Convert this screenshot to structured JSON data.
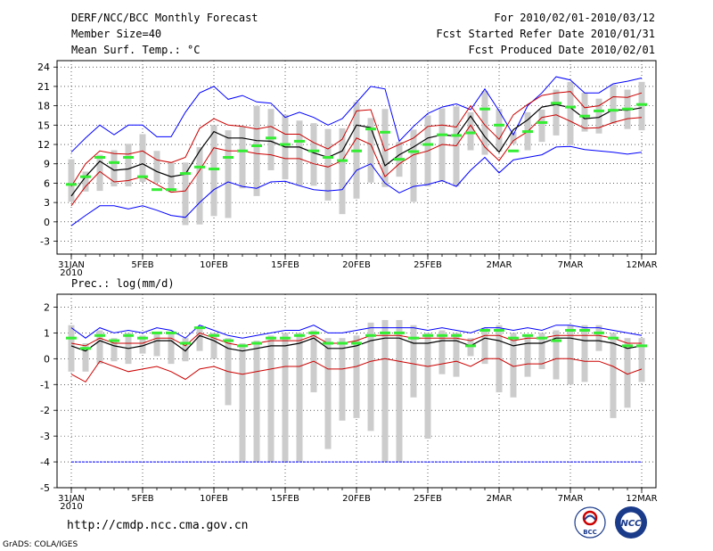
{
  "header": {
    "title": "DERF/NCC/BCC Monthly Forecast",
    "member_size": "Member Size=40",
    "variable": "Mean Surf. Temp.: °C",
    "period": "For 2010/02/01-2010/03/12",
    "start_date": "Fcst Started Refer Date 2010/01/31",
    "produced_date": "Fcst Produced Date 2010/02/01"
  },
  "footer": {
    "url": "http://cmdp.ncc.cma.gov.cn",
    "grads": "GrADS: COLA/IGES",
    "logo_bcc": "BCC",
    "logo_ncc": "NCC"
  },
  "colors": {
    "max_min": "#0000ff",
    "std": "#cc0000",
    "mean": "#000000",
    "median": "#33ee33",
    "box": "#cccccc"
  },
  "chart_data": [
    {
      "type": "line",
      "title": "Mean Surf. Temp.: °C",
      "ylim": [
        -5,
        25
      ],
      "yticks": [
        -3,
        0,
        3,
        6,
        9,
        12,
        15,
        18,
        21,
        24
      ],
      "x_days": [
        0,
        1,
        2,
        3,
        4,
        5,
        6,
        7,
        8,
        9,
        10,
        11,
        12,
        13,
        14,
        15,
        16,
        17,
        18,
        19,
        20,
        21,
        22,
        23,
        24,
        25,
        26,
        27,
        28,
        29,
        30,
        31,
        32,
        33,
        34,
        35,
        36,
        37,
        38,
        39,
        40
      ],
      "xticks": [
        {
          "day": 0,
          "label": "31JAN"
        },
        {
          "day": 5,
          "label": "5FEB"
        },
        {
          "day": 10,
          "label": "10FEB"
        },
        {
          "day": 15,
          "label": "15FEB"
        },
        {
          "day": 20,
          "label": "20FEB"
        },
        {
          "day": 25,
          "label": "25FEB"
        },
        {
          "day": 30,
          "label": "2MAR"
        },
        {
          "day": 35,
          "label": "7MAR"
        },
        {
          "day": 40,
          "label": "12MAR"
        }
      ],
      "xlabel_year": "2010",
      "series": [
        {
          "name": "max",
          "values": [
            10.8,
            13,
            15,
            13.5,
            15,
            15,
            13.2,
            13.2,
            17,
            20,
            21,
            19,
            19.6,
            18.6,
            18.4,
            16.2,
            17,
            16.2,
            15,
            16,
            18.5,
            21,
            20.6,
            12.5,
            14.8,
            16.8,
            17.8,
            18.3,
            17.4,
            20.6,
            17.2,
            13.5,
            18,
            20,
            22.5,
            22,
            20,
            20,
            21.4,
            21.8,
            22.3
          ]
        },
        {
          "name": "upper",
          "values": [
            5.5,
            9,
            11,
            10.6,
            10.5,
            11,
            9.6,
            9.2,
            10,
            14.5,
            16,
            15,
            14.8,
            14.4,
            14.8,
            13.6,
            13.6,
            12.3,
            11.3,
            12.8,
            17.2,
            17.4,
            11,
            12,
            13,
            14.8,
            15,
            14.7,
            18,
            15,
            12.8,
            16.6,
            18.2,
            19.6,
            20,
            20.2,
            17.7,
            18,
            19.4,
            19.3,
            20
          ]
        },
        {
          "name": "mean",
          "values": [
            4,
            7,
            9.4,
            8,
            8.2,
            9,
            7.8,
            7,
            7.4,
            11,
            14,
            13,
            13,
            12.6,
            12.5,
            11.6,
            11.6,
            10.7,
            10,
            11,
            15,
            14.6,
            8.7,
            10.4,
            11.6,
            13,
            13.5,
            13.3,
            16.4,
            13.2,
            10.8,
            14.3,
            15.8,
            17.8,
            18.2,
            17.7,
            16,
            16.2,
            17.4,
            17.3,
            17.7
          ]
        },
        {
          "name": "lower",
          "values": [
            2.5,
            5.5,
            7.8,
            6.2,
            6.4,
            7,
            5.8,
            4.6,
            4.8,
            8,
            11.5,
            11,
            11,
            10.6,
            10.4,
            9.8,
            9.8,
            9,
            8.5,
            9.5,
            13,
            12,
            7,
            9,
            10.4,
            11,
            12,
            11.8,
            15,
            11.6,
            9.5,
            12.6,
            14,
            16.2,
            16.6,
            15.6,
            14.5,
            14.6,
            15.4,
            16,
            16.2
          ]
        },
        {
          "name": "min",
          "values": [
            -0.6,
            1,
            2.5,
            2.5,
            2,
            2.5,
            1.8,
            1,
            0.7,
            3,
            5,
            6.2,
            5.5,
            5.2,
            6.2,
            6.3,
            5.6,
            5,
            4.8,
            5,
            8,
            9,
            6,
            4.5,
            5.5,
            5.8,
            6.4,
            5.5,
            8,
            10,
            7.6,
            9.6,
            10,
            10.4,
            11.6,
            11.7,
            11.2,
            11,
            10.8,
            10.5,
            10.8
          ]
        },
        {
          "name": "median",
          "values": [
            5.8,
            7,
            10,
            9.2,
            10,
            7,
            5,
            5,
            7.5,
            8.5,
            8.2,
            10,
            11,
            11.8,
            13,
            12,
            12.5,
            11,
            10,
            9.5,
            11,
            14.4,
            13.9,
            9.7,
            10.9,
            12,
            13.5,
            13.4,
            13.8,
            17.5,
            15,
            11,
            14,
            15.4,
            18.4,
            17.8,
            16.4,
            17.2,
            17.3,
            17.5,
            18.2
          ]
        },
        {
          "name": "box_top",
          "values": [
            9.7,
            7.8,
            10.4,
            11.1,
            12.1,
            13.6,
            11,
            9.2,
            9.2,
            11.6,
            15,
            14.2,
            14.8,
            18,
            17.5,
            16.6,
            15.7,
            15.3,
            14.4,
            14.5,
            18.6,
            16.1,
            17.5,
            12.4,
            14.3,
            16.5,
            17.6,
            17.9,
            17,
            20.3,
            17.5,
            13.9,
            17,
            17.4,
            20.5,
            21.7,
            20,
            19.1,
            21.3,
            20.5,
            21.7
          ]
        },
        {
          "name": "box_bottom",
          "values": [
            3.1,
            4.7,
            4.8,
            5.5,
            5.5,
            6.2,
            6.1,
            4.6,
            -0.5,
            -0.4,
            0.9,
            0.6,
            5.2,
            4,
            8,
            6.6,
            5.6,
            5.6,
            3.3,
            1.2,
            3.6,
            6.1,
            5.4,
            7,
            3.1,
            5.5,
            6.2,
            5.5,
            11.1,
            10.4,
            10.9,
            12.1,
            11.1,
            12.4,
            13.4,
            11.9,
            14,
            13.7,
            15.2,
            14.4,
            14.2
          ]
        }
      ]
    },
    {
      "type": "line",
      "title": "Prec.: log(mm/d)",
      "ylim": [
        -5,
        2.5
      ],
      "yticks": [
        -5,
        -4,
        -3,
        -2,
        -1,
        0,
        1,
        2
      ],
      "x_days": [
        0,
        1,
        2,
        3,
        4,
        5,
        6,
        7,
        8,
        9,
        10,
        11,
        12,
        13,
        14,
        15,
        16,
        17,
        18,
        19,
        20,
        21,
        22,
        23,
        24,
        25,
        26,
        27,
        28,
        29,
        30,
        31,
        32,
        33,
        34,
        35,
        36,
        37,
        38,
        39,
        40
      ],
      "xticks": [
        {
          "day": 0,
          "label": "31JAN"
        },
        {
          "day": 5,
          "label": "5FEB"
        },
        {
          "day": 10,
          "label": "10FEB"
        },
        {
          "day": 15,
          "label": "15FEB"
        },
        {
          "day": 20,
          "label": "20FEB"
        },
        {
          "day": 25,
          "label": "25FEB"
        },
        {
          "day": 30,
          "label": "2MAR"
        },
        {
          "day": 35,
          "label": "7MAR"
        },
        {
          "day": 40,
          "label": "12MAR"
        }
      ],
      "xlabel_year": "2010",
      "series": [
        {
          "name": "max",
          "values": [
            1.2,
            0.8,
            1.2,
            1,
            1.1,
            1,
            1.2,
            1.1,
            0.8,
            1.3,
            1.1,
            0.9,
            0.8,
            0.9,
            1,
            1.1,
            1.1,
            1.3,
            1,
            1,
            1.1,
            1.2,
            1.2,
            1.2,
            1.2,
            1.1,
            1.2,
            1.1,
            1,
            1.2,
            1.2,
            1.1,
            1.2,
            1.1,
            1.3,
            1.3,
            1.2,
            1.2,
            1.1,
            1,
            0.9
          ]
        },
        {
          "name": "upper",
          "values": [
            0.6,
            0.5,
            0.8,
            0.6,
            0.6,
            0.6,
            0.8,
            0.8,
            0.5,
            1,
            0.8,
            0.6,
            0.5,
            0.6,
            0.7,
            0.7,
            0.7,
            0.9,
            0.6,
            0.6,
            0.7,
            0.9,
            0.9,
            0.9,
            0.8,
            0.8,
            0.8,
            0.8,
            0.7,
            0.9,
            0.9,
            0.7,
            0.8,
            0.8,
            0.9,
            0.9,
            0.9,
            0.9,
            0.8,
            0.6,
            0.6
          ]
        },
        {
          "name": "mean",
          "values": [
            0.5,
            0.3,
            0.7,
            0.5,
            0.4,
            0.5,
            0.7,
            0.7,
            0.3,
            0.9,
            0.7,
            0.4,
            0.3,
            0.4,
            0.5,
            0.5,
            0.6,
            0.8,
            0.4,
            0.4,
            0.5,
            0.7,
            0.8,
            0.8,
            0.6,
            0.6,
            0.7,
            0.7,
            0.5,
            0.8,
            0.7,
            0.5,
            0.6,
            0.6,
            0.8,
            0.8,
            0.7,
            0.7,
            0.6,
            0.4,
            0.5
          ]
        },
        {
          "name": "lower",
          "values": [
            -0.6,
            -0.9,
            -0.1,
            -0.3,
            -0.5,
            -0.4,
            -0.3,
            -0.5,
            -0.8,
            -0.4,
            -0.3,
            -0.5,
            -0.6,
            -0.5,
            -0.4,
            -0.3,
            -0.3,
            -0.1,
            -0.4,
            -0.4,
            -0.3,
            -0.1,
            0,
            -0.1,
            -0.2,
            -0.3,
            -0.2,
            -0.1,
            -0.3,
            0,
            0,
            -0.3,
            -0.2,
            -0.2,
            0,
            0,
            -0.1,
            -0.1,
            -0.3,
            -0.6,
            -0.4
          ]
        },
        {
          "name": "min",
          "values": [
            -4,
            -4,
            -4,
            -4,
            -4,
            -4,
            -4,
            -4,
            -4,
            -4,
            -4,
            -4,
            -4,
            -4,
            -4,
            -4,
            -4,
            -4,
            -4,
            -4,
            -4,
            -4,
            -4,
            -4,
            -4,
            -4,
            -4,
            -4,
            -4,
            -4,
            -4,
            -4,
            -4,
            -4,
            -4,
            -4,
            -4,
            -4,
            -4,
            -4,
            -4
          ]
        },
        {
          "name": "median",
          "values": [
            0.8,
            0.4,
            0.9,
            0.7,
            0.9,
            0.8,
            1,
            1,
            0.6,
            1.2,
            0.9,
            0.7,
            0.5,
            0.6,
            0.8,
            0.8,
            0.9,
            1,
            0.6,
            0.6,
            0.6,
            0.9,
            1,
            1,
            0.8,
            0.9,
            0.9,
            0.9,
            0.5,
            1.1,
            1.1,
            0.8,
            0.9,
            0.8,
            0.7,
            1.1,
            1.1,
            1,
            0.8,
            0.5,
            0.5
          ]
        },
        {
          "name": "box_top",
          "values": [
            1.3,
            0.6,
            1.1,
            0.8,
            1,
            0.9,
            1,
            1,
            0.8,
            1.2,
            1,
            0.8,
            0.6,
            0.7,
            0.9,
            1,
            1,
            1.1,
            0.8,
            0.8,
            0.9,
            1.4,
            1.5,
            1.5,
            1.3,
            1,
            1.1,
            1,
            0.8,
            1.2,
            1.3,
            1,
            0.9,
            1,
            1.1,
            1.3,
            1.3,
            1.3,
            1,
            0.8,
            0.8
          ]
        },
        {
          "name": "box_bottom",
          "values": [
            -0.5,
            -0.5,
            -0.2,
            -0.1,
            -0.2,
            0.2,
            0.1,
            -0.2,
            -0.1,
            0.3,
            0,
            -1.8,
            -4,
            -4,
            -4,
            -4,
            -4,
            -1.3,
            -3.5,
            -2.4,
            -2.3,
            -2.8,
            -4,
            -4,
            -1.5,
            -3.1,
            -0.6,
            -0.7,
            0.1,
            -0.2,
            -1.3,
            -1.5,
            -0.7,
            -0.4,
            -0.8,
            -1,
            -0.9,
            0.3,
            -2.3,
            -1.9,
            -0.9
          ]
        }
      ]
    }
  ]
}
